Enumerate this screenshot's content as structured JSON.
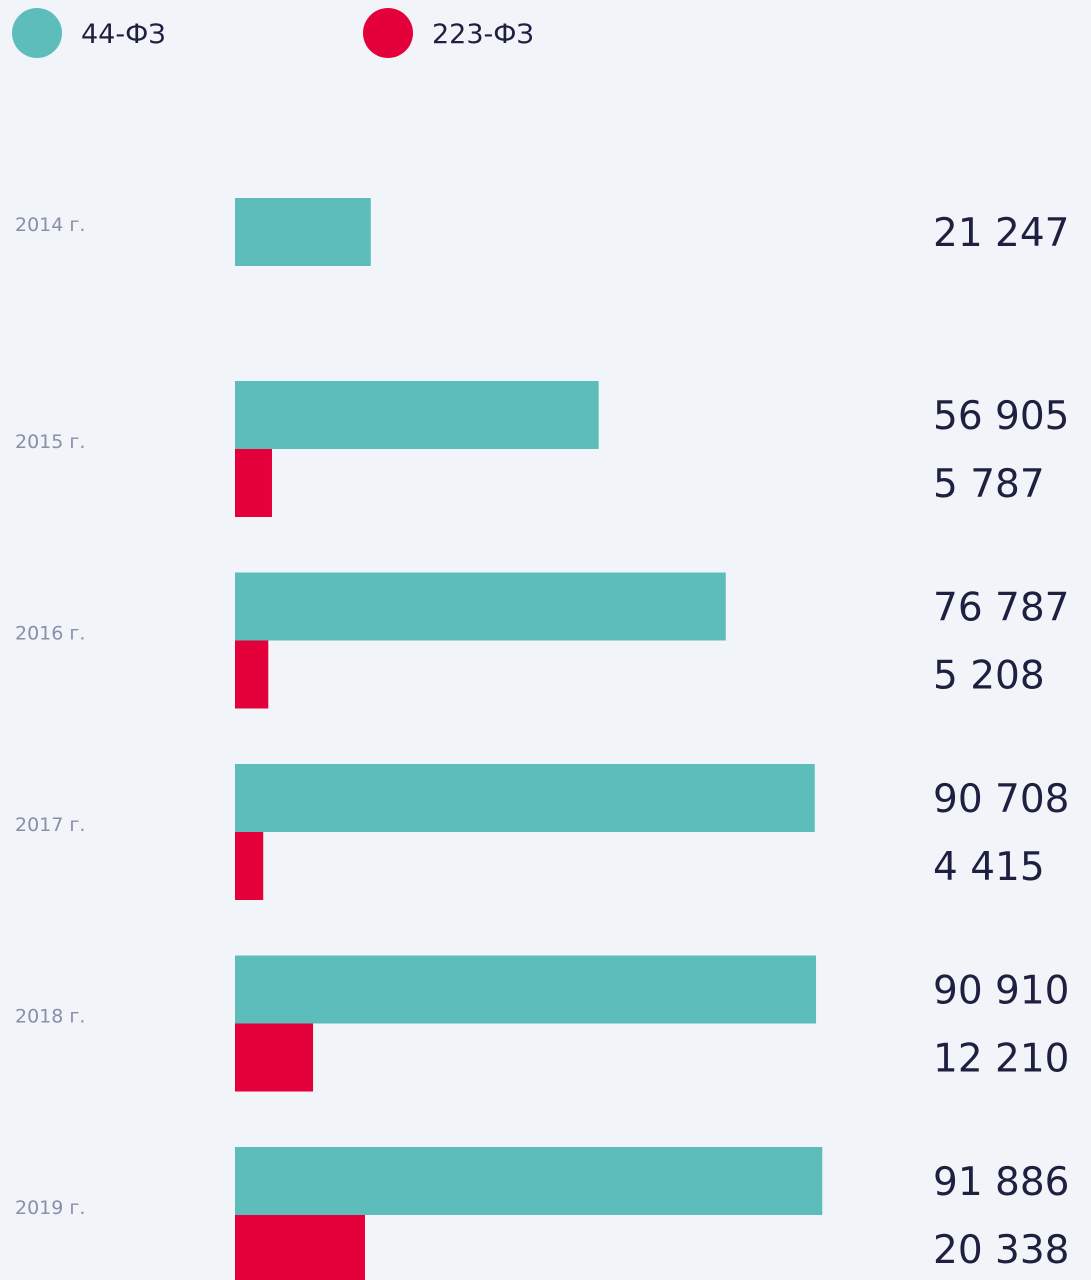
{
  "chart_data": {
    "type": "barh",
    "categories": [
      "2014 г.",
      "2015 г.",
      "2016 г.",
      "2017 г.",
      "2018 г.",
      "2019 г."
    ],
    "series": [
      {
        "name": "44-ФЗ",
        "color": "#5dbdbb",
        "values": [
          21247,
          56905,
          76787,
          90708,
          90910,
          91886
        ],
        "value_labels": [
          "21 247",
          "56 905",
          "76 787",
          "90 708",
          "90 910",
          "91 886"
        ]
      },
      {
        "name": "223-ФЗ",
        "color": "#e4003a",
        "values": [
          null,
          5787,
          5208,
          4415,
          12210,
          20338
        ],
        "value_labels": [
          null,
          "5 787",
          "5 208",
          "4 415",
          "12 210",
          "20 338"
        ]
      }
    ],
    "xlim": [
      0,
      92000
    ],
    "legend": "top-left"
  }
}
